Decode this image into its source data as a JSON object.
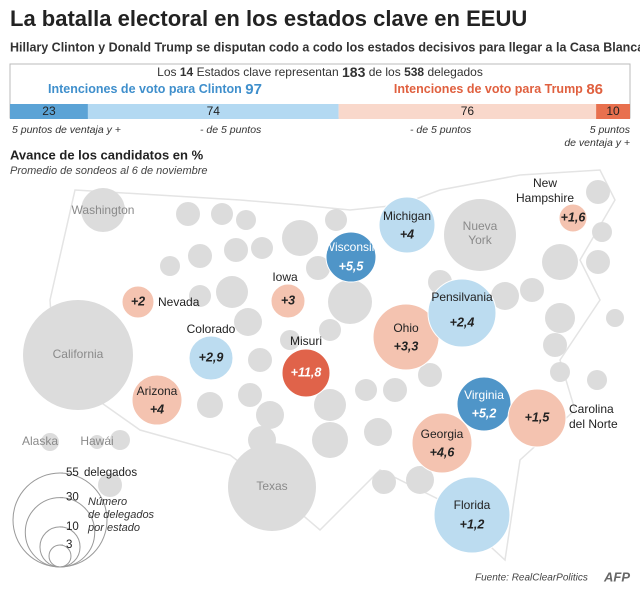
{
  "header": {
    "title": "La batalla electoral en los estados clave en EEUU",
    "subtitle": "Hillary Clinton y Donald Trump se disputan codo a codo los estados decisivos para llegar a la Casa Blanca"
  },
  "summary": {
    "parts": [
      "Los",
      "14",
      "Estados clave representan",
      "183",
      "de los",
      "538",
      "delegados"
    ]
  },
  "clinton": {
    "label": "Intenciones de voto para Clinton",
    "total": 97,
    "color": "#3f8fcc"
  },
  "trump": {
    "label": "Intenciones de voto para Trump",
    "total": 86,
    "color": "#e0603f"
  },
  "bar": {
    "segments": [
      {
        "value": 23,
        "color": "#5ba3d6",
        "note": [
          "5 puntos de ventaja y +"
        ]
      },
      {
        "value": 74,
        "color": "#b3d9f2",
        "note": [
          "- de 5 puntos"
        ]
      },
      {
        "value": 76,
        "color": "#f9d8cb",
        "note": [
          "- de 5 puntos"
        ]
      },
      {
        "value": 10,
        "color": "#e8704e",
        "note": [
          "5 puntos",
          "de ventaja y +"
        ]
      }
    ]
  },
  "section": {
    "title": "Avance de los candidatos en %",
    "subtitle": "Promedio de sondeos al 6 de noviembre"
  },
  "states": [
    {
      "name": [
        "Michigan"
      ],
      "lead": "+4",
      "color": "#bcdcf0"
    },
    {
      "name": [
        "Wisconsin"
      ],
      "lead": "+5,5",
      "color": "#4f95c8"
    },
    {
      "name": [
        "Iowa"
      ],
      "lead": "+3",
      "color": "#f4c3b0"
    },
    {
      "name": [
        "Nevada"
      ],
      "lead": "+2",
      "color": "#f4c3b0"
    },
    {
      "name": [
        "Colorado"
      ],
      "lead": "+2,9",
      "color": "#bcdcf0"
    },
    {
      "name": [
        "Misuri"
      ],
      "lead": "+11,8",
      "color": "#e0634a"
    },
    {
      "name": [
        "Arizona"
      ],
      "lead": "+4",
      "color": "#f4c3b0"
    },
    {
      "name": [
        "Ohio"
      ],
      "lead": "+3,3",
      "color": "#f4c3b0"
    },
    {
      "name": [
        "Pensilvania"
      ],
      "lead": "+2,4",
      "color": "#bcdcf0"
    },
    {
      "name": [
        "Virginia"
      ],
      "lead": "+5,2",
      "color": "#4f95c8"
    },
    {
      "name": [
        "Carolina",
        "del Norte"
      ],
      "lead": "+1,5",
      "color": "#f4c3b0"
    },
    {
      "name": [
        "Georgia"
      ],
      "lead": "+4,6",
      "color": "#f4c3b0"
    },
    {
      "name": [
        "Florida"
      ],
      "lead": "+1,2",
      "color": "#bcdcf0"
    },
    {
      "name": [
        "New",
        "Hampshire"
      ],
      "lead": "+1,6",
      "color": "#f4c3b0"
    }
  ],
  "other_states": [
    [
      "Washington"
    ],
    [
      "Nueva",
      "York"
    ],
    [
      "California"
    ],
    [
      "Texas"
    ],
    [
      "Alaska"
    ],
    [
      "Hawái"
    ]
  ],
  "legend": {
    "sizes": [
      55,
      30,
      10,
      3
    ],
    "unit": "delegados",
    "note": [
      "Número",
      "de delegados",
      "por estado"
    ]
  },
  "source": "Fuente: RealClearPolitics",
  "logo": "AFP"
}
